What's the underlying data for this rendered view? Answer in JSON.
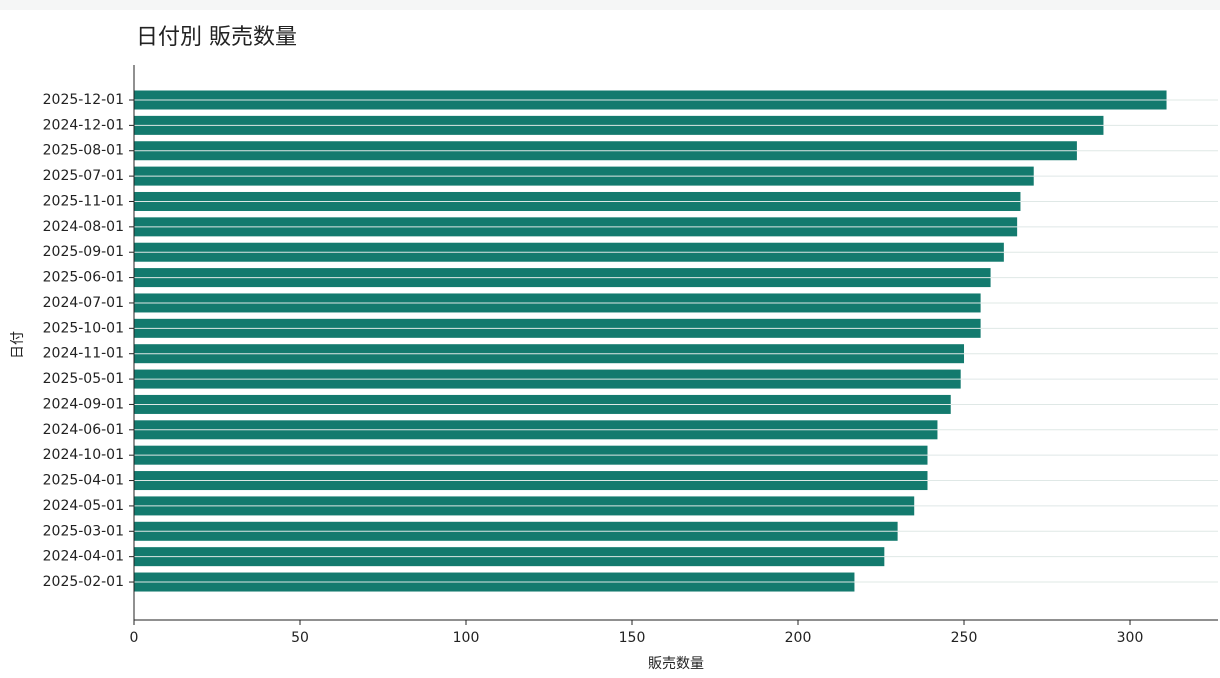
{
  "chart_data": {
    "type": "barh",
    "title": "日付別 販売数量",
    "xlabel": "販売数量",
    "ylabel": "日付",
    "categories": [
      "2025-12-01",
      "2024-12-01",
      "2025-08-01",
      "2025-07-01",
      "2025-11-01",
      "2024-08-01",
      "2025-09-01",
      "2025-06-01",
      "2024-07-01",
      "2025-10-01",
      "2024-11-01",
      "2025-05-01",
      "2024-09-01",
      "2024-06-01",
      "2024-10-01",
      "2025-04-01",
      "2024-05-01",
      "2025-03-01",
      "2024-04-01",
      "2025-02-01"
    ],
    "values": [
      311,
      292,
      284,
      271,
      267,
      266,
      262,
      258,
      255,
      255,
      250,
      249,
      246,
      242,
      239,
      239,
      235,
      230,
      226,
      217
    ],
    "color": "#137a6e",
    "xlim": [
      0,
      326.5
    ],
    "xticks": [
      0,
      50,
      100,
      150,
      200,
      250,
      300
    ],
    "grid": true
  }
}
